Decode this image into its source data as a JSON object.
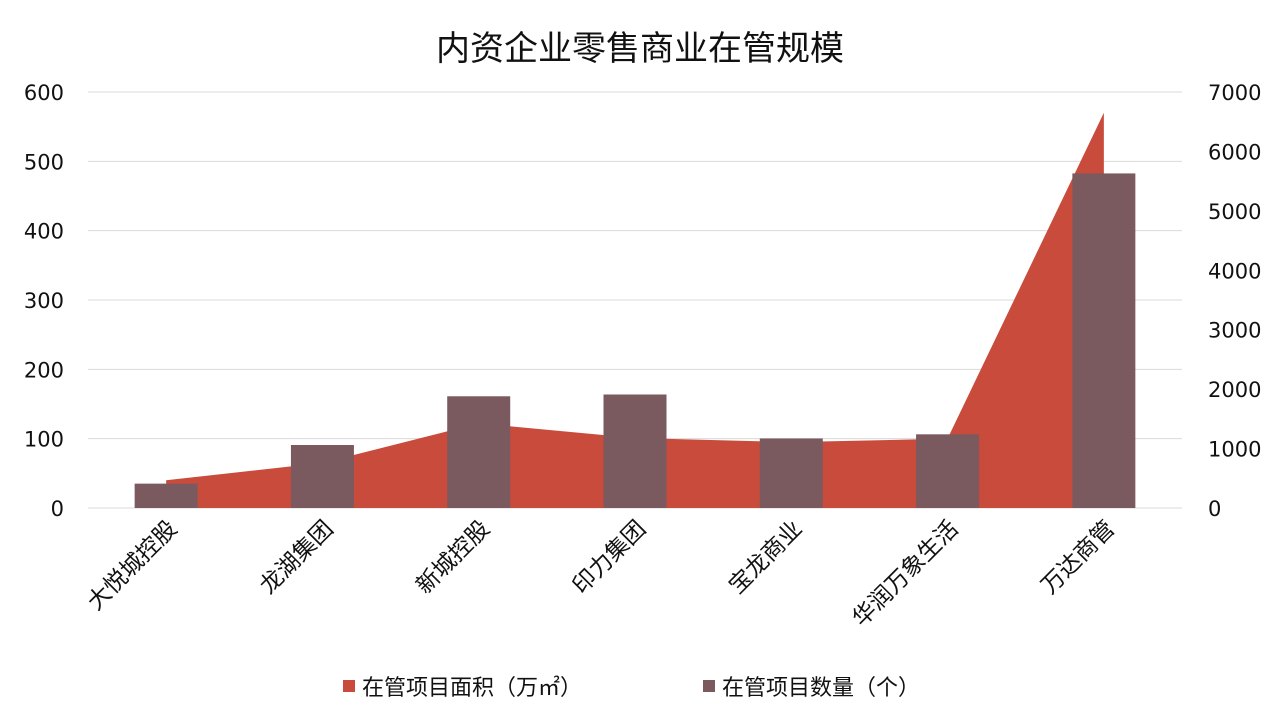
{
  "chart_data": {
    "type": "bar",
    "title": "内资企业零售商业在管规模",
    "categories": [
      "大悦城控股",
      "龙湖集团",
      "新城控股",
      "印力集团",
      "宝龙商业",
      "华润万象生活",
      "万达商管"
    ],
    "series": [
      {
        "name": "在管项目面积（万㎡）",
        "type": "area",
        "axis": "left",
        "color": "#C94B3B",
        "values": [
          40,
          65,
          122,
          101,
          95,
          100,
          570
        ]
      },
      {
        "name": "在管项目数量（个）",
        "type": "bar",
        "axis": "right",
        "color": "#7B5A5F",
        "values": [
          410,
          1060,
          1880,
          1910,
          1170,
          1240,
          5630
        ]
      }
    ],
    "y_left": {
      "min": 0,
      "max": 600,
      "ticks": [
        "0",
        "100",
        "200",
        "300",
        "400",
        "500",
        "600"
      ]
    },
    "y_right": {
      "min": 0,
      "max": 7000,
      "ticks": [
        "0",
        "1000",
        "2000",
        "3000",
        "4000",
        "5000",
        "6000",
        "7000"
      ]
    },
    "grid": true,
    "legend_position": "bottom"
  }
}
